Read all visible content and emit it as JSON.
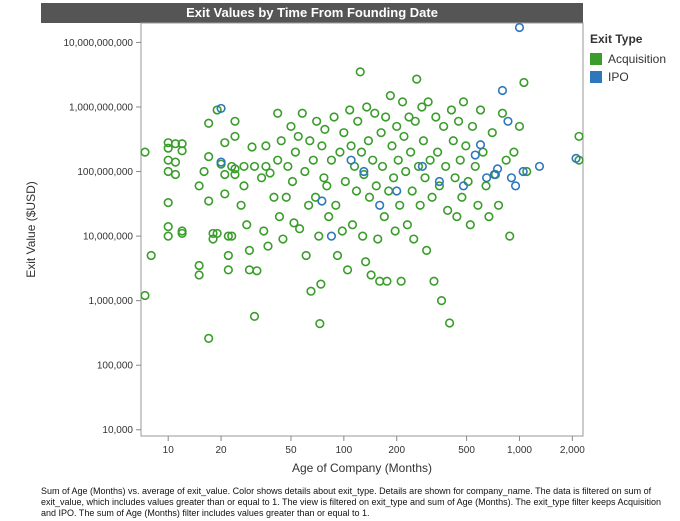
{
  "chart_data": {
    "type": "scatter",
    "title": "Exit Values by Time From Founding Date",
    "xlabel": "Age of Company (Months)",
    "ylabel": "Exit Value ($USD)",
    "x_scale": "log",
    "y_scale": "log",
    "xlim": [
      7,
      2300
    ],
    "ylim": [
      8000,
      20000000000
    ],
    "x_ticks": [
      10,
      20,
      50,
      100,
      200,
      500,
      1000,
      2000
    ],
    "x_tick_labels": [
      "10",
      "20",
      "50",
      "100",
      "200",
      "500",
      "1,000",
      "2,000"
    ],
    "y_ticks": [
      10000,
      100000,
      1000000,
      10000000,
      100000000,
      1000000000,
      10000000000
    ],
    "y_tick_labels": [
      "10,000",
      "100,000",
      "1,000,000",
      "10,000,000",
      "100,000,000",
      "1,000,000,000",
      "10,000,000,000"
    ],
    "grid": false,
    "legend_placement": "right",
    "legend_title": "Exit Type",
    "series": [
      {
        "name": "Acquisition",
        "color": "#3a9d2b",
        "points": [
          [
            7,
            200000000
          ],
          [
            7,
            1200000
          ],
          [
            8,
            5000000
          ],
          [
            10,
            280000000
          ],
          [
            10,
            230000000
          ],
          [
            10,
            150000000
          ],
          [
            10,
            100000000
          ],
          [
            10,
            33000000
          ],
          [
            10,
            14000000
          ],
          [
            10,
            10000000
          ],
          [
            11,
            270000000
          ],
          [
            11,
            140000000
          ],
          [
            11,
            90000000
          ],
          [
            12,
            270000000
          ],
          [
            12,
            210000000
          ],
          [
            12,
            12000000
          ],
          [
            12,
            11000000
          ],
          [
            15,
            60000000
          ],
          [
            15,
            3500000
          ],
          [
            15,
            2500000
          ],
          [
            16,
            100000000
          ],
          [
            17,
            560000000
          ],
          [
            17,
            170000000
          ],
          [
            17,
            35000000
          ],
          [
            17,
            260000
          ],
          [
            18,
            11000000
          ],
          [
            18,
            9000000
          ],
          [
            19,
            900000000
          ],
          [
            19,
            11000000
          ],
          [
            20,
            130000000
          ],
          [
            21,
            280000000
          ],
          [
            21,
            90000000
          ],
          [
            21,
            45000000
          ],
          [
            22,
            10000000
          ],
          [
            22,
            5000000
          ],
          [
            22,
            3000000
          ],
          [
            23,
            120000000
          ],
          [
            23,
            10000000
          ],
          [
            24,
            600000000
          ],
          [
            24,
            350000000
          ],
          [
            24,
            110000000
          ],
          [
            24,
            90000000
          ],
          [
            26,
            30000000
          ],
          [
            27,
            120000000
          ],
          [
            27,
            60000000
          ],
          [
            28,
            15000000
          ],
          [
            29,
            6000000
          ],
          [
            29,
            3000000
          ],
          [
            30,
            240000000
          ],
          [
            31,
            120000000
          ],
          [
            31,
            570000
          ],
          [
            32,
            2900000
          ],
          [
            34,
            80000000
          ],
          [
            35,
            12000000
          ],
          [
            36,
            250000000
          ],
          [
            36,
            120000000
          ],
          [
            37,
            7000000
          ],
          [
            38,
            95000000
          ],
          [
            40,
            40000000
          ],
          [
            42,
            800000000
          ],
          [
            42,
            150000000
          ],
          [
            43,
            20000000
          ],
          [
            44,
            300000000
          ],
          [
            45,
            9000000
          ],
          [
            47,
            40000000
          ],
          [
            48,
            120000000
          ],
          [
            50,
            500000000
          ],
          [
            51,
            70000000
          ],
          [
            52,
            16000000
          ],
          [
            53,
            200000000
          ],
          [
            55,
            350000000
          ],
          [
            56,
            13000000
          ],
          [
            58,
            800000000
          ],
          [
            60,
            100000000
          ],
          [
            61,
            5000000
          ],
          [
            63,
            30000000
          ],
          [
            64,
            300000000
          ],
          [
            65,
            1400000
          ],
          [
            67,
            150000000
          ],
          [
            69,
            40000000
          ],
          [
            70,
            600000000
          ],
          [
            72,
            10000000
          ],
          [
            73,
            440000
          ],
          [
            74,
            1800000
          ],
          [
            75,
            250000000
          ],
          [
            77,
            80000000
          ],
          [
            78,
            450000000
          ],
          [
            80,
            60000000
          ],
          [
            82,
            20000000
          ],
          [
            85,
            150000000
          ],
          [
            88,
            700000000
          ],
          [
            90,
            30000000
          ],
          [
            92,
            5000000
          ],
          [
            95,
            200000000
          ],
          [
            98,
            12000000
          ],
          [
            100,
            400000000
          ],
          [
            102,
            70000000
          ],
          [
            105,
            3000000
          ],
          [
            108,
            900000000
          ],
          [
            110,
            250000000
          ],
          [
            112,
            15000000
          ],
          [
            115,
            120000000
          ],
          [
            118,
            50000000
          ],
          [
            120,
            600000000
          ],
          [
            124,
            3500000000
          ],
          [
            126,
            200000000
          ],
          [
            128,
            10000000
          ],
          [
            130,
            90000000
          ],
          [
            133,
            4000000
          ],
          [
            135,
            1000000000
          ],
          [
            138,
            300000000
          ],
          [
            140,
            40000000
          ],
          [
            143,
            2500000
          ],
          [
            146,
            150000000
          ],
          [
            150,
            800000000
          ],
          [
            153,
            60000000
          ],
          [
            156,
            9000000
          ],
          [
            160,
            2000000
          ],
          [
            163,
            400000000
          ],
          [
            166,
            120000000
          ],
          [
            170,
            20000000
          ],
          [
            173,
            700000000
          ],
          [
            176,
            2000000
          ],
          [
            180,
            50000000
          ],
          [
            184,
            1500000000
          ],
          [
            188,
            250000000
          ],
          [
            192,
            80000000
          ],
          [
            196,
            12000000
          ],
          [
            200,
            500000000
          ],
          [
            204,
            150000000
          ],
          [
            208,
            30000000
          ],
          [
            212,
            2000000
          ],
          [
            216,
            1200000000
          ],
          [
            220,
            350000000
          ],
          [
            225,
            100000000
          ],
          [
            230,
            15000000
          ],
          [
            235,
            700000000
          ],
          [
            240,
            200000000
          ],
          [
            245,
            50000000
          ],
          [
            250,
            9000000
          ],
          [
            255,
            600000000
          ],
          [
            260,
            2700000000
          ],
          [
            266,
            120000000
          ],
          [
            272,
            30000000
          ],
          [
            278,
            1000000000
          ],
          [
            284,
            300000000
          ],
          [
            290,
            80000000
          ],
          [
            296,
            6000000
          ],
          [
            302,
            1200000000
          ],
          [
            310,
            150000000
          ],
          [
            318,
            40000000
          ],
          [
            326,
            2000000
          ],
          [
            334,
            700000000
          ],
          [
            342,
            200000000
          ],
          [
            350,
            60000000
          ],
          [
            360,
            1000000
          ],
          [
            370,
            500000000
          ],
          [
            380,
            120000000
          ],
          [
            390,
            25000000
          ],
          [
            400,
            450000
          ],
          [
            410,
            900000000
          ],
          [
            420,
            300000000
          ],
          [
            430,
            80000000
          ],
          [
            440,
            20000000
          ],
          [
            450,
            600000000
          ],
          [
            460,
            150000000
          ],
          [
            470,
            40000000
          ],
          [
            480,
            1200000000
          ],
          [
            495,
            250000000
          ],
          [
            510,
            70000000
          ],
          [
            525,
            15000000
          ],
          [
            540,
            500000000
          ],
          [
            560,
            120000000
          ],
          [
            580,
            30000000
          ],
          [
            600,
            900000000
          ],
          [
            620,
            200000000
          ],
          [
            645,
            60000000
          ],
          [
            670,
            20000000
          ],
          [
            700,
            400000000
          ],
          [
            730,
            90000000
          ],
          [
            760,
            30000000
          ],
          [
            800,
            800000000
          ],
          [
            840,
            150000000
          ],
          [
            880,
            10000000
          ],
          [
            930,
            200000000
          ],
          [
            1000,
            500000000
          ],
          [
            1060,
            2400000000
          ],
          [
            1100,
            100000000
          ],
          [
            2300,
            350000000
          ],
          [
            2200,
            150000000
          ]
        ]
      },
      {
        "name": "IPO",
        "color": "#2e77bb",
        "points": [
          [
            20,
            950000000
          ],
          [
            20,
            140000000
          ],
          [
            75,
            35000000
          ],
          [
            85,
            10000000
          ],
          [
            110,
            150000000
          ],
          [
            130,
            100000000
          ],
          [
            160,
            30000000
          ],
          [
            200,
            50000000
          ],
          [
            280,
            120000000
          ],
          [
            350,
            70000000
          ],
          [
            480,
            60000000
          ],
          [
            560,
            180000000
          ],
          [
            650,
            80000000
          ],
          [
            750,
            110000000
          ],
          [
            800,
            1800000000
          ],
          [
            860,
            600000000
          ],
          [
            900,
            80000000
          ],
          [
            950,
            60000000
          ],
          [
            1000,
            17000000000
          ],
          [
            1050,
            100000000
          ],
          [
            1300,
            120000000
          ],
          [
            2100,
            160000000
          ],
          [
            720,
            90000000
          ],
          [
            600,
            260000000
          ]
        ]
      }
    ]
  },
  "caption": "Sum of Age (Months) vs. average of exit_value.  Color shows details about exit_type.  Details are shown for company_name. The data is filtered on sum of exit_value, which includes values greater than or equal to 1. The view is filtered on exit_type and sum of Age (Months). The exit_type filter keeps Acquisition and IPO. The sum of Age (Months) filter includes values greater than or equal to 1."
}
